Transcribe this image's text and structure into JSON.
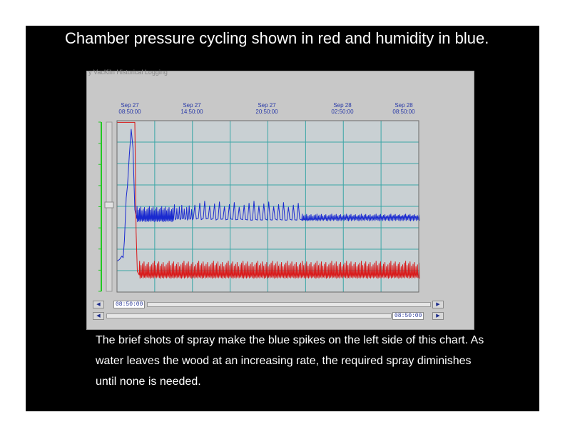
{
  "slide": {
    "title": "Chamber pressure cycling shown in red and humidity in blue.",
    "caption": "The brief shots of spray make the blue spikes on the left side of this chart. As water leaves the wood at an increasing rate, the required spray diminishes until none is needed."
  },
  "window": {
    "title": "y VacKiln Historical Logging",
    "start_time": "08:50:00",
    "end_time": "08:50:00"
  },
  "colors": {
    "humidity": "#1a2ad0",
    "pressure": "#d81818",
    "plot_bg": "#c9d0d3",
    "grid": "#3aa6a6",
    "tick_text": "#2a3aa8",
    "left_axis": "#22c822"
  },
  "chart_data": {
    "type": "line",
    "x_ticks": [
      {
        "date": "Sep 27",
        "time": "08:50:00"
      },
      {
        "date": "Sep 27",
        "time": "14:50:00"
      },
      {
        "date": "Sep 27",
        "time": "20:50:00"
      },
      {
        "date": "Sep 28",
        "time": "02:50:00"
      },
      {
        "date": "Sep 28",
        "time": "08:50:00"
      }
    ],
    "x_range_hours": [
      0,
      24.5
    ],
    "y_range": [
      0,
      100
    ],
    "grid": true,
    "series": [
      {
        "color": "humidity",
        "baseline": [
          [
            0,
            18
          ],
          [
            0.2,
            19
          ],
          [
            0.4,
            21
          ],
          [
            0.5,
            20
          ],
          [
            0.6,
            30
          ],
          [
            0.75,
            55
          ],
          [
            0.85,
            62
          ],
          [
            1.0,
            80
          ],
          [
            1.15,
            95
          ],
          [
            1.3,
            84
          ],
          [
            1.45,
            48
          ],
          [
            1.6,
            43
          ],
          [
            3,
            43
          ],
          [
            5,
            43
          ],
          [
            7,
            43
          ],
          [
            9,
            42.5
          ],
          [
            11,
            42
          ],
          [
            13,
            42
          ],
          [
            15,
            42
          ],
          [
            17,
            43
          ],
          [
            19,
            43.5
          ],
          [
            21,
            43.5
          ],
          [
            23,
            44
          ],
          [
            24.5,
            44
          ]
        ],
        "spikes": [
          {
            "from": 1.6,
            "to": 4.6,
            "every": 0.1,
            "low": 41,
            "high": 50
          },
          {
            "from": 4.6,
            "to": 6.2,
            "every": 0.2,
            "low": 42,
            "high": 51
          },
          {
            "from": 6.2,
            "to": 15.0,
            "every": 0.4,
            "low": 42,
            "high": 53
          },
          {
            "from": 15.0,
            "to": 24.5,
            "every": 0.12,
            "low": 41.5,
            "high": 45.5
          }
        ]
      },
      {
        "color": "pressure",
        "baseline": [
          [
            0,
            99
          ],
          [
            1.45,
            99
          ],
          [
            1.55,
            35
          ],
          [
            1.65,
            12
          ],
          [
            1.8,
            10
          ],
          [
            24.5,
            10
          ]
        ],
        "spikes": [
          {
            "from": 1.8,
            "to": 24.5,
            "every": 0.12,
            "low": 8,
            "high": 18
          }
        ]
      }
    ]
  }
}
